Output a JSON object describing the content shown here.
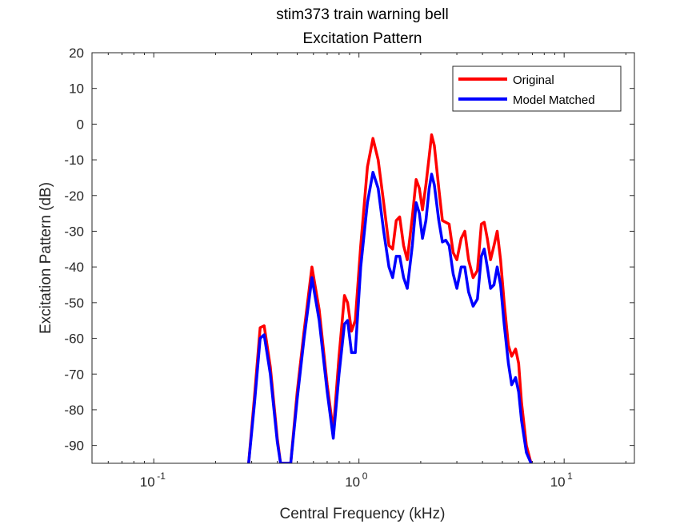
{
  "chart_data": {
    "type": "line",
    "title": "stim373 train warning bell",
    "subtitle": "Excitation Pattern",
    "xlabel": "Central Frequency (kHz)",
    "ylabel": "Excitation Pattern (dB)",
    "xscale": "log",
    "xlim": [
      0.05,
      22
    ],
    "ylim": [
      -95,
      20
    ],
    "yticks": [
      20,
      10,
      0,
      -10,
      -20,
      -30,
      -40,
      -50,
      -60,
      -70,
      -80,
      -90
    ],
    "xticks": [
      {
        "value": 0.1,
        "base": "10",
        "exp": "-1"
      },
      {
        "value": 1,
        "base": "10",
        "exp": "0"
      },
      {
        "value": 10,
        "base": "10",
        "exp": "1"
      }
    ],
    "grid": false,
    "legend_position": "top-right",
    "series": [
      {
        "name": "Original",
        "color": "#ff0000",
        "points": [
          [
            0.29,
            -95
          ],
          [
            0.31,
            -76
          ],
          [
            0.33,
            -57
          ],
          [
            0.345,
            -56.5
          ],
          [
            0.37,
            -68
          ],
          [
            0.4,
            -88
          ],
          [
            0.415,
            -95
          ],
          [
            0.465,
            -95
          ],
          [
            0.5,
            -75
          ],
          [
            0.54,
            -58
          ],
          [
            0.59,
            -40
          ],
          [
            0.64,
            -52
          ],
          [
            0.7,
            -73
          ],
          [
            0.75,
            -86
          ],
          [
            0.8,
            -65
          ],
          [
            0.85,
            -48
          ],
          [
            0.88,
            -50
          ],
          [
            0.92,
            -58
          ],
          [
            0.96,
            -55
          ],
          [
            1.02,
            -34
          ],
          [
            1.1,
            -12
          ],
          [
            1.17,
            -4
          ],
          [
            1.24,
            -10
          ],
          [
            1.32,
            -22
          ],
          [
            1.4,
            -34
          ],
          [
            1.46,
            -35
          ],
          [
            1.52,
            -27
          ],
          [
            1.58,
            -26
          ],
          [
            1.65,
            -34
          ],
          [
            1.72,
            -38
          ],
          [
            1.82,
            -26
          ],
          [
            1.9,
            -15.5
          ],
          [
            1.97,
            -18
          ],
          [
            2.04,
            -24
          ],
          [
            2.12,
            -17
          ],
          [
            2.2,
            -9
          ],
          [
            2.26,
            -3
          ],
          [
            2.33,
            -6
          ],
          [
            2.45,
            -18
          ],
          [
            2.55,
            -27
          ],
          [
            2.65,
            -27.5
          ],
          [
            2.75,
            -28
          ],
          [
            2.88,
            -36
          ],
          [
            3.0,
            -38
          ],
          [
            3.15,
            -32
          ],
          [
            3.28,
            -30
          ],
          [
            3.42,
            -38
          ],
          [
            3.6,
            -43
          ],
          [
            3.78,
            -41
          ],
          [
            3.95,
            -28
          ],
          [
            4.08,
            -27.5
          ],
          [
            4.22,
            -32
          ],
          [
            4.38,
            -38
          ],
          [
            4.55,
            -34
          ],
          [
            4.72,
            -30
          ],
          [
            4.9,
            -38
          ],
          [
            5.1,
            -50
          ],
          [
            5.35,
            -62
          ],
          [
            5.55,
            -65
          ],
          [
            5.8,
            -63
          ],
          [
            6.0,
            -67
          ],
          [
            6.2,
            -78
          ],
          [
            6.55,
            -90
          ],
          [
            6.9,
            -95
          ]
        ]
      },
      {
        "name": "Model Matched",
        "color": "#0000ff",
        "points": [
          [
            0.29,
            -95
          ],
          [
            0.31,
            -78
          ],
          [
            0.33,
            -60
          ],
          [
            0.345,
            -59
          ],
          [
            0.37,
            -70
          ],
          [
            0.4,
            -89
          ],
          [
            0.415,
            -95
          ],
          [
            0.465,
            -95
          ],
          [
            0.5,
            -77
          ],
          [
            0.54,
            -60
          ],
          [
            0.59,
            -43
          ],
          [
            0.64,
            -55
          ],
          [
            0.7,
            -75
          ],
          [
            0.75,
            -88
          ],
          [
            0.8,
            -70
          ],
          [
            0.85,
            -56
          ],
          [
            0.88,
            -55
          ],
          [
            0.92,
            -64
          ],
          [
            0.96,
            -64
          ],
          [
            1.02,
            -40
          ],
          [
            1.1,
            -22
          ],
          [
            1.17,
            -13.5
          ],
          [
            1.24,
            -18
          ],
          [
            1.32,
            -30
          ],
          [
            1.4,
            -40
          ],
          [
            1.46,
            -43
          ],
          [
            1.52,
            -37
          ],
          [
            1.58,
            -37
          ],
          [
            1.65,
            -43
          ],
          [
            1.72,
            -46
          ],
          [
            1.82,
            -34
          ],
          [
            1.9,
            -22
          ],
          [
            1.97,
            -25
          ],
          [
            2.04,
            -32
          ],
          [
            2.12,
            -27
          ],
          [
            2.2,
            -18
          ],
          [
            2.26,
            -14
          ],
          [
            2.33,
            -17
          ],
          [
            2.45,
            -27
          ],
          [
            2.55,
            -33
          ],
          [
            2.65,
            -32.5
          ],
          [
            2.75,
            -34
          ],
          [
            2.88,
            -42
          ],
          [
            3.0,
            -46
          ],
          [
            3.15,
            -40
          ],
          [
            3.28,
            -40
          ],
          [
            3.42,
            -47
          ],
          [
            3.6,
            -51
          ],
          [
            3.78,
            -49
          ],
          [
            3.95,
            -37
          ],
          [
            4.08,
            -35
          ],
          [
            4.22,
            -40
          ],
          [
            4.38,
            -46
          ],
          [
            4.55,
            -45
          ],
          [
            4.72,
            -40
          ],
          [
            4.9,
            -45
          ],
          [
            5.1,
            -56
          ],
          [
            5.35,
            -67
          ],
          [
            5.55,
            -73
          ],
          [
            5.8,
            -71
          ],
          [
            6.0,
            -75
          ],
          [
            6.2,
            -83
          ],
          [
            6.55,
            -92
          ],
          [
            6.9,
            -95
          ]
        ]
      }
    ]
  }
}
